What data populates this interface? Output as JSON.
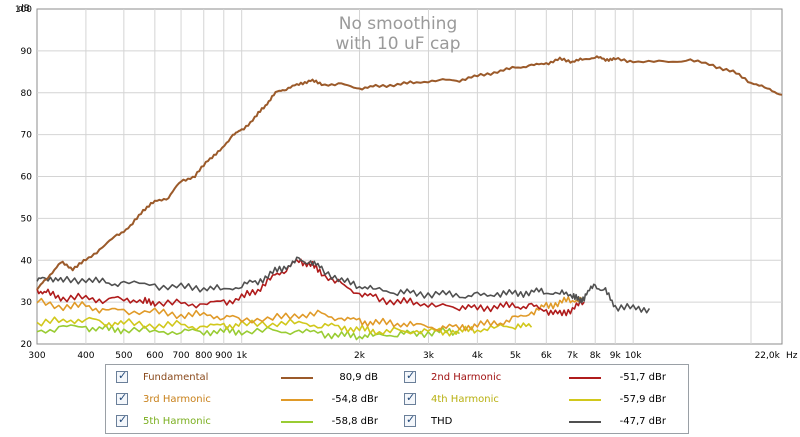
{
  "chart_data": {
    "type": "line",
    "title": [
      "No smoothing",
      "with 10 uF cap"
    ],
    "ylabel": "dB",
    "xlabel_unit": "Hz",
    "xscale": "log",
    "xlim": [
      300,
      24000
    ],
    "ylim": [
      20,
      100
    ],
    "grid": true,
    "y_ticks": [
      20,
      30,
      40,
      50,
      60,
      70,
      80,
      90,
      100
    ],
    "x_ticks": [
      {
        "v": 300,
        "label": "300"
      },
      {
        "v": 400,
        "label": "400"
      },
      {
        "v": 500,
        "label": "500"
      },
      {
        "v": 600,
        "label": "600"
      },
      {
        "v": 700,
        "label": "700"
      },
      {
        "v": 800,
        "label": "800"
      },
      {
        "v": 900,
        "label": "900"
      },
      {
        "v": 1000,
        "label": "1k"
      },
      {
        "v": 2000,
        "label": "2k"
      },
      {
        "v": 3000,
        "label": "3k"
      },
      {
        "v": 4000,
        "label": "4k"
      },
      {
        "v": 5000,
        "label": "5k"
      },
      {
        "v": 6000,
        "label": "6k"
      },
      {
        "v": 7000,
        "label": "7k"
      },
      {
        "v": 8000,
        "label": "8k"
      },
      {
        "v": 9000,
        "label": "9k"
      },
      {
        "v": 10000,
        "label": "10k"
      },
      {
        "v": 22000,
        "label": "22,0k"
      }
    ],
    "series": [
      {
        "name": "Fundamental",
        "color": "#9b5a2a",
        "points": [
          [
            300,
            33
          ],
          [
            320,
            36
          ],
          [
            345,
            39.5
          ],
          [
            370,
            38
          ],
          [
            400,
            40
          ],
          [
            440,
            43
          ],
          [
            480,
            46
          ],
          [
            520,
            48
          ],
          [
            560,
            52
          ],
          [
            600,
            54
          ],
          [
            650,
            55
          ],
          [
            700,
            59
          ],
          [
            760,
            60
          ],
          [
            820,
            64
          ],
          [
            880,
            66
          ],
          [
            950,
            70
          ],
          [
            1000,
            71
          ],
          [
            1080,
            74
          ],
          [
            1150,
            77
          ],
          [
            1220,
            80
          ],
          [
            1300,
            81
          ],
          [
            1400,
            82
          ],
          [
            1500,
            83
          ],
          [
            1600,
            82
          ],
          [
            1800,
            82
          ],
          [
            2000,
            81
          ],
          [
            2200,
            81.5
          ],
          [
            2500,
            82
          ],
          [
            2800,
            82.5
          ],
          [
            3200,
            83
          ],
          [
            3600,
            83
          ],
          [
            4000,
            84
          ],
          [
            4500,
            85
          ],
          [
            5000,
            86
          ],
          [
            5500,
            86.5
          ],
          [
            6000,
            87
          ],
          [
            6500,
            88
          ],
          [
            7000,
            87.5
          ],
          [
            7500,
            88
          ],
          [
            8000,
            88.5
          ],
          [
            8500,
            88
          ],
          [
            9000,
            88
          ],
          [
            10000,
            87.5
          ],
          [
            12000,
            87.3
          ],
          [
            14000,
            87.8
          ],
          [
            16000,
            86.5
          ],
          [
            18000,
            85
          ],
          [
            20000,
            82.5
          ],
          [
            22000,
            81
          ],
          [
            24000,
            79.5
          ]
        ]
      },
      {
        "name": "2nd Harmonic",
        "color": "#b01c1c",
        "points": [
          [
            300,
            33
          ],
          [
            320,
            32
          ],
          [
            350,
            31
          ],
          [
            400,
            31
          ],
          [
            450,
            30.5
          ],
          [
            500,
            31
          ],
          [
            560,
            30
          ],
          [
            600,
            30
          ],
          [
            700,
            29.5
          ],
          [
            800,
            29.5
          ],
          [
            900,
            30
          ],
          [
            1000,
            31
          ],
          [
            1100,
            33
          ],
          [
            1200,
            36
          ],
          [
            1300,
            38
          ],
          [
            1400,
            40
          ],
          [
            1500,
            39
          ],
          [
            1600,
            37
          ],
          [
            1800,
            34
          ],
          [
            2000,
            32
          ],
          [
            2200,
            31
          ],
          [
            2500,
            30
          ],
          [
            2800,
            30
          ],
          [
            3200,
            29
          ],
          [
            3600,
            29
          ],
          [
            4000,
            28.5
          ],
          [
            4500,
            29
          ],
          [
            5000,
            29
          ],
          [
            5500,
            29
          ],
          [
            6000,
            28
          ],
          [
            6500,
            27
          ],
          [
            7000,
            28.5
          ],
          [
            7500,
            30
          ]
        ]
      },
      {
        "name": "3rd Harmonic",
        "color": "#e09a28",
        "points": [
          [
            300,
            30
          ],
          [
            350,
            29
          ],
          [
            400,
            29
          ],
          [
            450,
            28
          ],
          [
            500,
            28
          ],
          [
            600,
            27.5
          ],
          [
            700,
            27
          ],
          [
            800,
            27
          ],
          [
            900,
            26.5
          ],
          [
            1000,
            26
          ],
          [
            1200,
            26
          ],
          [
            1400,
            27
          ],
          [
            1600,
            27
          ],
          [
            1800,
            26
          ],
          [
            2000,
            25.5
          ],
          [
            2200,
            25
          ],
          [
            2500,
            25
          ],
          [
            2800,
            24.5
          ],
          [
            3200,
            24
          ],
          [
            3600,
            24
          ],
          [
            4000,
            24.5
          ],
          [
            4500,
            25
          ],
          [
            5000,
            26
          ],
          [
            5500,
            27.5
          ],
          [
            6000,
            29
          ],
          [
            6500,
            30
          ],
          [
            7000,
            30.5
          ],
          [
            7500,
            31
          ]
        ]
      },
      {
        "name": "4th Harmonic",
        "color": "#d1c81c",
        "points": [
          [
            300,
            25
          ],
          [
            350,
            25.5
          ],
          [
            400,
            26
          ],
          [
            450,
            25
          ],
          [
            500,
            25
          ],
          [
            600,
            24.5
          ],
          [
            700,
            24.5
          ],
          [
            800,
            24
          ],
          [
            900,
            24.5
          ],
          [
            1000,
            24.5
          ],
          [
            1200,
            25
          ],
          [
            1400,
            25
          ],
          [
            1600,
            24.5
          ],
          [
            1800,
            24
          ],
          [
            2000,
            23.5
          ],
          [
            2200,
            23
          ],
          [
            2500,
            23
          ],
          [
            2800,
            23
          ],
          [
            3200,
            23
          ],
          [
            3600,
            23
          ],
          [
            4000,
            23.5
          ],
          [
            4500,
            24
          ],
          [
            5000,
            24.5
          ],
          [
            5500,
            24
          ]
        ]
      },
      {
        "name": "5th Harmonic",
        "color": "#99cc33",
        "points": [
          [
            300,
            23
          ],
          [
            350,
            24
          ],
          [
            400,
            24
          ],
          [
            450,
            23.5
          ],
          [
            500,
            23.5
          ],
          [
            600,
            23
          ],
          [
            700,
            23
          ],
          [
            800,
            23
          ],
          [
            900,
            23
          ],
          [
            1000,
            23
          ],
          [
            1200,
            23
          ],
          [
            1400,
            23
          ],
          [
            1600,
            22.5
          ],
          [
            1800,
            22
          ],
          [
            2000,
            22
          ],
          [
            2200,
            22
          ],
          [
            2500,
            22.5
          ],
          [
            2800,
            22.5
          ],
          [
            3200,
            23
          ],
          [
            3600,
            22.5
          ]
        ]
      },
      {
        "name": "THD",
        "color": "#505050",
        "points": [
          [
            300,
            35
          ],
          [
            320,
            36
          ],
          [
            350,
            35
          ],
          [
            400,
            35.5
          ],
          [
            450,
            34.5
          ],
          [
            500,
            34.5
          ],
          [
            600,
            34
          ],
          [
            700,
            33.5
          ],
          [
            800,
            33.5
          ],
          [
            900,
            33
          ],
          [
            1000,
            34
          ],
          [
            1100,
            35
          ],
          [
            1200,
            37
          ],
          [
            1300,
            38.5
          ],
          [
            1400,
            40
          ],
          [
            1500,
            39.5
          ],
          [
            1600,
            38
          ],
          [
            1800,
            35
          ],
          [
            2000,
            34
          ],
          [
            2200,
            33
          ],
          [
            2500,
            32.5
          ],
          [
            2800,
            32
          ],
          [
            3200,
            32
          ],
          [
            3600,
            31.5
          ],
          [
            4000,
            31.5
          ],
          [
            4500,
            32
          ],
          [
            5000,
            32
          ],
          [
            5500,
            32.5
          ],
          [
            6000,
            32.5
          ],
          [
            6500,
            32
          ],
          [
            7000,
            32
          ],
          [
            7300,
            30
          ],
          [
            7600,
            32
          ],
          [
            8000,
            34
          ],
          [
            8500,
            32.5
          ],
          [
            9000,
            29
          ],
          [
            10000,
            28.5
          ],
          [
            11000,
            28.5
          ]
        ]
      }
    ]
  },
  "legend": {
    "items": [
      {
        "name": "Fundamental",
        "value": "80,9 dB",
        "color": "#9b5a2a",
        "text_color": "#8a4a1c"
      },
      {
        "name": "2nd Harmonic",
        "value": "-51,7 dBr",
        "color": "#b01c1c",
        "text_color": "#a01010"
      },
      {
        "name": "3rd Harmonic",
        "value": "-54,8 dBr",
        "color": "#e09a28",
        "text_color": "#c8801a"
      },
      {
        "name": "4th Harmonic",
        "value": "-57,9 dBr",
        "color": "#d1c81c",
        "text_color": "#b8b010"
      },
      {
        "name": "5th Harmonic",
        "value": "-58,8 dBr",
        "color": "#99cc33",
        "text_color": "#7aae1e"
      },
      {
        "name": "THD",
        "value": "-47,7 dBr",
        "color": "#505050",
        "text_color": "#000000"
      }
    ],
    "check_glyph": "✓"
  }
}
